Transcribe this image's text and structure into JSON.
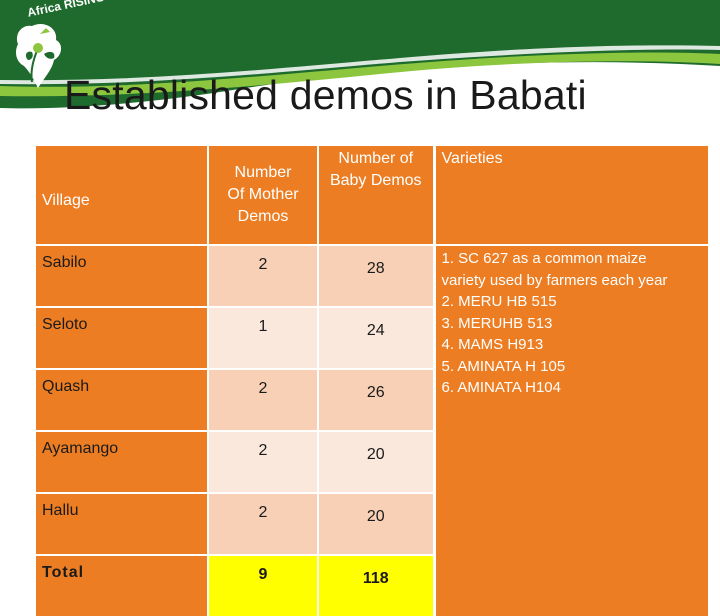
{
  "logo": {
    "text": "Africa RISING"
  },
  "title": "Established demos in Babati",
  "table": {
    "headers": {
      "village": "Village",
      "mother": [
        "Number",
        "Of Mother",
        "Demos"
      ],
      "baby": [
        "Number of",
        "Baby Demos"
      ],
      "varieties": "Varieties"
    },
    "rows": [
      {
        "village": "Sabilo",
        "mother": "2",
        "baby": "28"
      },
      {
        "village": "Seloto",
        "mother": "1",
        "baby": "24"
      },
      {
        "village": "Quash",
        "mother": "2",
        "baby": "26"
      },
      {
        "village": "Ayamango",
        "mother": "2",
        "baby": "20"
      },
      {
        "village": "Hallu",
        "mother": "2",
        "baby": "20"
      },
      {
        "village": "Total",
        "mother": "9",
        "baby": "118"
      }
    ],
    "varieties": [
      "1. SC 627 as a common maize",
      "variety used by farmers each year",
      "2.  MERU HB 515",
      "3. MERUHB 513",
      "4. MAMS H913",
      "5. AMINATA H 105",
      "6. AMINATA H104"
    ]
  },
  "colors": {
    "banner_dark_green": "#1f6b2e",
    "banner_light_green": "#8cc63f",
    "header_orange": "#ed7d22",
    "cell_light": "#f7d0b6",
    "cell_lighter": "#fbe8dc",
    "total_highlight": "#ffff00"
  }
}
